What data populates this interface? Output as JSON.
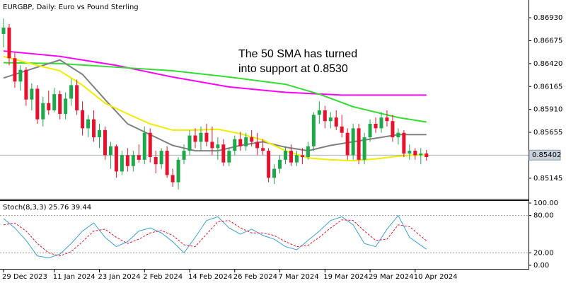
{
  "chart_data": [
    {
      "type": "candlestick",
      "title": "EURGBP, Daily:  Euro vs Pound Sterling",
      "annotations": [
        "The 50 SMA has turned",
        "into support at 0.8530"
      ],
      "annotation_color": "#e0202a",
      "up_color": "#1fa84a",
      "down_color": "#e8112d",
      "categories": [
        "29 Dec 2023",
        null,
        null,
        null,
        null,
        null,
        null,
        null,
        null,
        "11 Jan 2024",
        null,
        null,
        null,
        null,
        null,
        null,
        null,
        "23 Jan 2024",
        null,
        null,
        null,
        null,
        null,
        null,
        null,
        "2 Feb 2024",
        null,
        null,
        null,
        null,
        null,
        null,
        null,
        "14 Feb 2024",
        null,
        null,
        null,
        null,
        null,
        null,
        null,
        "26 Feb 2024",
        null,
        null,
        null,
        null,
        null,
        null,
        null,
        "7 Mar 2024",
        null,
        null,
        null,
        null,
        null,
        null,
        null,
        "19 Mar 2024",
        null,
        null,
        null,
        null,
        null,
        null,
        null,
        "29 Mar 2024",
        null,
        null,
        null,
        null,
        null,
        null,
        null,
        "10 Apr 2024",
        null,
        null
      ],
      "open": [
        0.8675,
        0.8682,
        0.8648,
        0.8622,
        0.8635,
        0.8602,
        0.8614,
        0.858,
        0.8598,
        0.859,
        0.8608,
        0.8586,
        0.8603,
        0.8618,
        0.859,
        0.857,
        0.858,
        0.856,
        0.8568,
        0.854,
        0.855,
        0.8522,
        0.854,
        0.8528,
        0.854,
        0.8535,
        0.8565,
        0.8538,
        0.853,
        0.8545,
        0.8518,
        0.851,
        0.8535,
        0.8545,
        0.8562,
        0.8555,
        0.8565,
        0.8555,
        0.8548,
        0.8552,
        0.8532,
        0.8545,
        0.8558,
        0.855,
        0.856,
        0.8555,
        0.8548,
        0.8545,
        0.8515,
        0.8525,
        0.8535,
        0.8545,
        0.8532,
        0.854,
        0.8538,
        0.855,
        0.8585,
        0.859,
        0.8578,
        0.8582,
        0.8572,
        0.8565,
        0.854,
        0.857,
        0.8535,
        0.856,
        0.8575,
        0.857,
        0.8582,
        0.8578,
        0.856,
        0.8565,
        0.8542,
        0.8545,
        0.854,
        0.8542
      ],
      "high": [
        0.8692,
        0.8686,
        0.8655,
        0.864,
        0.8638,
        0.862,
        0.8618,
        0.8605,
        0.8612,
        0.8615,
        0.8612,
        0.861,
        0.8625,
        0.8624,
        0.86,
        0.8585,
        0.859,
        0.8575,
        0.8572,
        0.8555,
        0.8552,
        0.8545,
        0.8548,
        0.8545,
        0.8552,
        0.8572,
        0.857,
        0.8545,
        0.8548,
        0.855,
        0.8525,
        0.8538,
        0.8552,
        0.8568,
        0.857,
        0.8572,
        0.8575,
        0.8572,
        0.856,
        0.8558,
        0.8548,
        0.8562,
        0.8566,
        0.8565,
        0.8568,
        0.8565,
        0.8558,
        0.8548,
        0.853,
        0.854,
        0.855,
        0.8552,
        0.8545,
        0.8548,
        0.8555,
        0.8588,
        0.86,
        0.8595,
        0.8588,
        0.859,
        0.8585,
        0.857,
        0.8575,
        0.8575,
        0.8565,
        0.858,
        0.8582,
        0.8588,
        0.859,
        0.8585,
        0.857,
        0.8568,
        0.8552,
        0.8548,
        0.8548,
        0.8546
      ],
      "low": [
        0.866,
        0.864,
        0.8615,
        0.8612,
        0.8595,
        0.859,
        0.8575,
        0.8572,
        0.8585,
        0.8588,
        0.858,
        0.858,
        0.8595,
        0.8585,
        0.8562,
        0.856,
        0.8555,
        0.8548,
        0.8535,
        0.8525,
        0.8515,
        0.8518,
        0.8522,
        0.8522,
        0.8532,
        0.853,
        0.8532,
        0.852,
        0.8525,
        0.8515,
        0.8505,
        0.8502,
        0.853,
        0.854,
        0.8548,
        0.8545,
        0.855,
        0.854,
        0.8535,
        0.8528,
        0.8528,
        0.854,
        0.8545,
        0.8545,
        0.855,
        0.854,
        0.854,
        0.851,
        0.8508,
        0.852,
        0.853,
        0.8528,
        0.8528,
        0.853,
        0.8535,
        0.8545,
        0.8575,
        0.857,
        0.857,
        0.8568,
        0.856,
        0.8535,
        0.8535,
        0.853,
        0.853,
        0.8555,
        0.8565,
        0.8565,
        0.8572,
        0.8555,
        0.8552,
        0.8538,
        0.8535,
        0.8535,
        0.853,
        0.8534
      ],
      "close": [
        0.8682,
        0.8648,
        0.8622,
        0.8635,
        0.8602,
        0.8614,
        0.858,
        0.8598,
        0.859,
        0.8608,
        0.8586,
        0.8603,
        0.8618,
        0.859,
        0.857,
        0.858,
        0.856,
        0.8568,
        0.854,
        0.855,
        0.8522,
        0.854,
        0.8528,
        0.854,
        0.8535,
        0.8565,
        0.8538,
        0.853,
        0.8545,
        0.8518,
        0.851,
        0.8535,
        0.8545,
        0.8562,
        0.8555,
        0.8565,
        0.8555,
        0.8548,
        0.8552,
        0.8532,
        0.8545,
        0.8558,
        0.855,
        0.856,
        0.8555,
        0.8548,
        0.8545,
        0.8515,
        0.8525,
        0.8535,
        0.8545,
        0.8532,
        0.854,
        0.8538,
        0.855,
        0.8585,
        0.859,
        0.8578,
        0.8582,
        0.8572,
        0.8565,
        0.854,
        0.857,
        0.8535,
        0.856,
        0.8575,
        0.857,
        0.8582,
        0.8578,
        0.856,
        0.8565,
        0.8542,
        0.8545,
        0.854,
        0.8542,
        0.8538
      ],
      "series": [
        {
          "color": "#ff00ff",
          "x": [
            0,
            10,
            20,
            30,
            40,
            50,
            60,
            75
          ],
          "values": [
            0.8656,
            0.865,
            0.864,
            0.8627,
            0.8616,
            0.861,
            0.8607,
            0.8607
          ]
        },
        {
          "color": "#33dd33",
          "x": [
            0,
            10,
            20,
            30,
            40,
            50,
            56,
            62,
            66,
            70,
            75
          ],
          "values": [
            0.8643,
            0.8642,
            0.8638,
            0.8634,
            0.8627,
            0.8619,
            0.8608,
            0.8594,
            0.8588,
            0.8582,
            0.8577
          ]
        },
        {
          "color": "#808080",
          "x": [
            0,
            6,
            10,
            14,
            18,
            22,
            26,
            30,
            34,
            38,
            42,
            46,
            50,
            54,
            58,
            62,
            66,
            70,
            75
          ],
          "values": [
            0.8626,
            0.8638,
            0.8646,
            0.863,
            0.8602,
            0.8575,
            0.8563,
            0.8551,
            0.8545,
            0.8545,
            0.8551,
            0.8555,
            0.8549,
            0.8545,
            0.8551,
            0.8555,
            0.8559,
            0.8563,
            0.8563
          ]
        },
        {
          "color": "#f2ec00",
          "x": [
            0,
            6,
            10,
            14,
            18,
            22,
            26,
            30,
            34,
            38,
            42,
            46,
            50,
            54,
            58,
            62,
            66,
            70,
            75
          ],
          "values": [
            0.865,
            0.864,
            0.8634,
            0.8618,
            0.8598,
            0.8586,
            0.8575,
            0.8568,
            0.8568,
            0.8569,
            0.8564,
            0.8557,
            0.8545,
            0.8537,
            0.8535,
            0.8534,
            0.8536,
            0.8539,
            0.8541
          ]
        }
      ],
      "last_price": 0.85402,
      "ylim": [
        0.84916,
        0.87127
      ],
      "yticks": [
        {
          "value": 0.8693,
          "label": "0.86930"
        },
        {
          "value": 0.86675,
          "label": "0.86675"
        },
        {
          "value": 0.8642,
          "label": "0.86420"
        },
        {
          "value": 0.86165,
          "label": "0.86165"
        },
        {
          "value": 0.8591,
          "label": "0.85910"
        },
        {
          "value": 0.85655,
          "label": "0.85655"
        },
        {
          "value": 0.85145,
          "label": "0.85145"
        }
      ]
    },
    {
      "type": "line",
      "title": "Stoch(8,3,3)",
      "x": [
        0,
        2,
        4,
        6,
        8,
        10,
        12,
        14,
        16,
        18,
        20,
        22,
        24,
        26,
        28,
        30,
        32,
        34,
        36,
        38,
        40,
        42,
        44,
        46,
        48,
        50,
        52,
        54,
        56,
        58,
        60,
        62,
        64,
        66,
        68,
        70,
        72,
        75
      ],
      "series": [
        {
          "color": "#3aa0d8",
          "dashed": false,
          "values": [
            75,
            60,
            40,
            15,
            12,
            18,
            35,
            55,
            68,
            45,
            30,
            38,
            55,
            60,
            52,
            38,
            20,
            45,
            72,
            78,
            60,
            50,
            58,
            48,
            42,
            30,
            25,
            40,
            55,
            72,
            78,
            65,
            35,
            30,
            58,
            80,
            45,
            25.76
          ]
        },
        {
          "color": "#e8112d",
          "dashed": true,
          "values": [
            65,
            68,
            55,
            35,
            20,
            15,
            22,
            38,
            55,
            58,
            45,
            35,
            42,
            52,
            56,
            48,
            33,
            30,
            50,
            70,
            72,
            60,
            52,
            52,
            48,
            38,
            30,
            32,
            45,
            60,
            73,
            72,
            55,
            40,
            42,
            65,
            62,
            39.44
          ]
        }
      ],
      "ylim": [
        0,
        100
      ],
      "yticks": [
        {
          "value": 100,
          "label": "100.00"
        },
        {
          "value": 80,
          "label": "80.00"
        },
        {
          "value": 20,
          "label": "20.00"
        },
        {
          "value": 0,
          "label": "0.00"
        }
      ]
    }
  ]
}
